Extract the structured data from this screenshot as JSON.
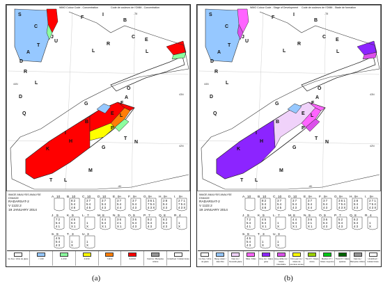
{
  "panels": [
    {
      "id": "a",
      "caption": "(a)",
      "header_left": "WMO Colour Code - Concentration",
      "header_right": "Code de couleurs de l'OMM - Concentration",
      "date_stamp": {
        "line1": "IMAGE ANALYSIS     ANALYSE D'IMAGE",
        "line2": "RADARSAT-2",
        "line3": "V 1122.2",
        "line4": "19 JANUARY 2014"
      },
      "labels": [
        "S",
        "C",
        "T",
        "F",
        "B",
        "I",
        "D",
        "L",
        "A",
        "J",
        "U",
        "C",
        "E",
        "R",
        "L",
        "R",
        "L",
        "A",
        "O",
        "D",
        "Q",
        "G",
        "E",
        "F",
        "B",
        "L",
        "P",
        "T",
        "N",
        "I",
        "H",
        "K",
        "G",
        "M",
        "L",
        "T"
      ],
      "coordinates": [
        "-78",
        "44N",
        "43N",
        "-80",
        "42N"
      ],
      "legend": [
        {
          "label": "Ice free / Libre de glace",
          "color": "#ffffff"
        },
        {
          "label": "< 1/10",
          "color": "#96c8ff"
        },
        {
          "label": "1-3/10",
          "color": "#8cff9f"
        },
        {
          "label": "4-6/10",
          "color": "#ffff00"
        },
        {
          "label": "7-8/10",
          "color": "#ff7d07"
        },
        {
          "label": "9-10/10",
          "color": "#ff0000"
        },
        {
          "label": "Fast ice / Banquise côtière",
          "color": "#969696"
        },
        {
          "label": "Undefined / Indéterminée",
          "color": "#ffffff"
        }
      ]
    },
    {
      "id": "b",
      "caption": "(b)",
      "header_left": "WMO Colour Code - Stage of Development",
      "header_right": "Code de couleurs de l'OMM - Stade de formation",
      "date_stamp": {
        "line1": "IMAGE ANALYSIS     ANALYSE D'IMAGE",
        "line2": "RADARSAT-2",
        "line3": "V 1122.2",
        "line4": "19 JANUARY 2014"
      },
      "labels": [
        "S",
        "C",
        "T",
        "F",
        "B",
        "I",
        "D",
        "L",
        "A",
        "J",
        "U",
        "C",
        "E",
        "R",
        "L",
        "R",
        "L",
        "A",
        "O",
        "D",
        "Q",
        "G",
        "E",
        "F",
        "B",
        "L",
        "P",
        "T",
        "N",
        "I",
        "H",
        "K",
        "G",
        "M",
        "L",
        "T"
      ],
      "coordinates": [
        "-78",
        "44N",
        "43N",
        "-80",
        "42N"
      ],
      "legend": [
        {
          "label": "Ice free / Libre de glace",
          "color": "#ffffff"
        },
        {
          "label": "Bergy water / Eau libre",
          "color": "#96c8ff"
        },
        {
          "label": "New ice / Nouvelle glace",
          "color": "#f0d2fa"
        },
        {
          "label": "Nilas / Nilas",
          "color": "#ff64ff"
        },
        {
          "label": "Grey ice / Glace grise",
          "color": "#8c24ff"
        },
        {
          "label": "Grey-white ice / Glace blanchâtre",
          "color": "#dc50eb"
        },
        {
          "label": "First-year ice / Glace de première année",
          "color": "#ffff00"
        },
        {
          "label": "Thin FY / Glace mince",
          "color": "#9bd200"
        },
        {
          "label": "Medium FY / Glace moyenne",
          "color": "#00c814"
        },
        {
          "label": "Thick FY / Glace épaisse",
          "color": "#006400"
        },
        {
          "label": "Fast ice / Banquise côtière",
          "color": "#969696"
        },
        {
          "label": "Undefined / Indéterminée",
          "color": "#ffffff"
        }
      ]
    }
  ],
  "egg_codes": [
    {
      "label": "A",
      "top": "10",
      "rows": [
        "",
        "",
        "",
        ""
      ]
    },
    {
      "label": "B",
      "top": "10",
      "rows": [
        "8 2",
        "5 4",
        "4 8"
      ]
    },
    {
      "label": "C",
      "top": "10",
      "rows": [
        "3 7",
        "5 4",
        "4 5"
      ]
    },
    {
      "label": "D",
      "top": "10",
      "rows": [
        "3 7",
        "5 4",
        "4 3"
      ]
    },
    {
      "label": "E",
      "top": "9+",
      "rows": [
        "3 7",
        "5 4",
        "4 4"
      ]
    },
    {
      "label": "F",
      "top": "9+",
      "rows": [
        "3 7",
        "5 4",
        "4 3"
      ]
    },
    {
      "label": "G",
      "top": "9+",
      "rows": [
        "3 6 1",
        "7 5 4",
        "4 3 X"
      ]
    },
    {
      "label": "H",
      "top": "9+",
      "rows": [
        "2 8",
        "5 4",
        "4 3"
      ]
    },
    {
      "label": "I",
      "top": "9+",
      "rows": [
        "2 7 1",
        "7 5 4",
        "4 3 X"
      ]
    },
    {
      "label": "J",
      "top": "9",
      "rows": [
        "7 2",
        "5 4",
        "4 1"
      ]
    },
    {
      "label": "K",
      "top": "9",
      "rows": [
        "4 5",
        "5 4",
        "X 1"
      ]
    },
    {
      "label": "L",
      "top": "7",
      "rows": [
        "",
        "1",
        "X"
      ]
    },
    {
      "label": "M",
      "top": "8",
      "rows": [
        "4 4",
        "5 4",
        "X 1"
      ]
    },
    {
      "label": "N",
      "top": "9",
      "rows": [
        "3 6",
        "4 1",
        "X 1"
      ]
    },
    {
      "label": "O",
      "top": "9",
      "rows": [
        "3 6",
        "5 4",
        "4 3"
      ]
    },
    {
      "label": "P",
      "top": "7",
      "rows": [
        "5 2",
        "5 4",
        "4 3"
      ]
    },
    {
      "label": "Q",
      "top": "8",
      "rows": [
        "6 2",
        "5 4",
        "4 3"
      ]
    },
    {
      "label": "R",
      "top": "4",
      "rows": [
        "",
        "1",
        "X"
      ]
    },
    {
      "label": "S",
      "top": "9",
      "rows": [
        "4 5",
        "5 4",
        "4 3"
      ]
    },
    {
      "label": "T",
      "top": "3",
      "rows": [
        "",
        "1",
        "X"
      ]
    },
    {
      "label": "U",
      "top": "3",
      "rows": [
        "",
        "1",
        "X"
      ]
    }
  ]
}
